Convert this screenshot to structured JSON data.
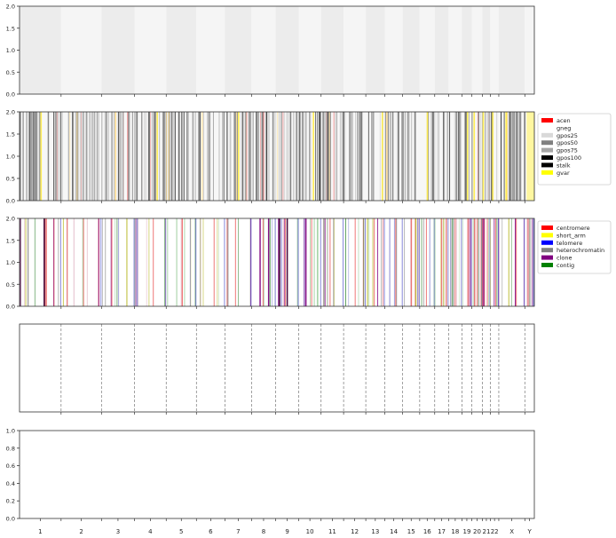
{
  "chart_data": {
    "type": "genome-track-panels",
    "chromosomes": [
      "1",
      "2",
      "3",
      "4",
      "5",
      "6",
      "7",
      "8",
      "9",
      "10",
      "11",
      "12",
      "13",
      "14",
      "15",
      "16",
      "17",
      "18",
      "19",
      "20",
      "21",
      "22",
      "X",
      "Y"
    ],
    "chromosome_lengths_mb": [
      249,
      242,
      198,
      190,
      181,
      171,
      159,
      145,
      138,
      134,
      135,
      133,
      114,
      107,
      102,
      90,
      83,
      80,
      59,
      64,
      47,
      51,
      156,
      57
    ],
    "panels": [
      {
        "name": "chromosome-shading",
        "yticks": [
          "0.0",
          "0.5",
          "1.0",
          "1.5",
          "2.0"
        ],
        "ylim": [
          0,
          2
        ],
        "shade_colors": [
          "#ececec",
          "#f5f5f5"
        ]
      },
      {
        "name": "cytobands",
        "yticks": [
          "0.0",
          "0.5",
          "1.0",
          "1.5",
          "2.0"
        ],
        "ylim": [
          0,
          2
        ],
        "legend": {
          "position": "right",
          "entries": [
            {
              "label": "acen",
              "color": "#ff0000"
            },
            {
              "label": "gneg",
              "color": "#ffffff"
            },
            {
              "label": "gpos25",
              "color": "#d9d9d9"
            },
            {
              "label": "gpos50",
              "color": "#808080"
            },
            {
              "label": "gpos75",
              "color": "#a6a6a6"
            },
            {
              "label": "gpos100",
              "color": "#000000"
            },
            {
              "label": "stalk",
              "color": "#000000"
            },
            {
              "label": "gvar",
              "color": "#ffff00"
            }
          ]
        }
      },
      {
        "name": "features",
        "yticks": [
          "0.0",
          "0.5",
          "1.0",
          "1.5",
          "2.0"
        ],
        "ylim": [
          0,
          2
        ],
        "legend": {
          "position": "right",
          "entries": [
            {
              "label": "centromere",
              "color": "#ff0000"
            },
            {
              "label": "short_arm",
              "color": "#ffff00"
            },
            {
              "label": "telomere",
              "color": "#0000ff"
            },
            {
              "label": "heterochromatin",
              "color": "#808080"
            },
            {
              "label": "clone",
              "color": "#800080"
            },
            {
              "label": "contig",
              "color": "#008000"
            }
          ]
        }
      },
      {
        "name": "chromosome-boundaries",
        "boundary_style": "dashed"
      },
      {
        "name": "empty-axis",
        "yticks": [
          "0.0",
          "0.2",
          "0.4",
          "0.6",
          "0.8",
          "1.0"
        ],
        "ylim": [
          0,
          1
        ]
      }
    ]
  }
}
